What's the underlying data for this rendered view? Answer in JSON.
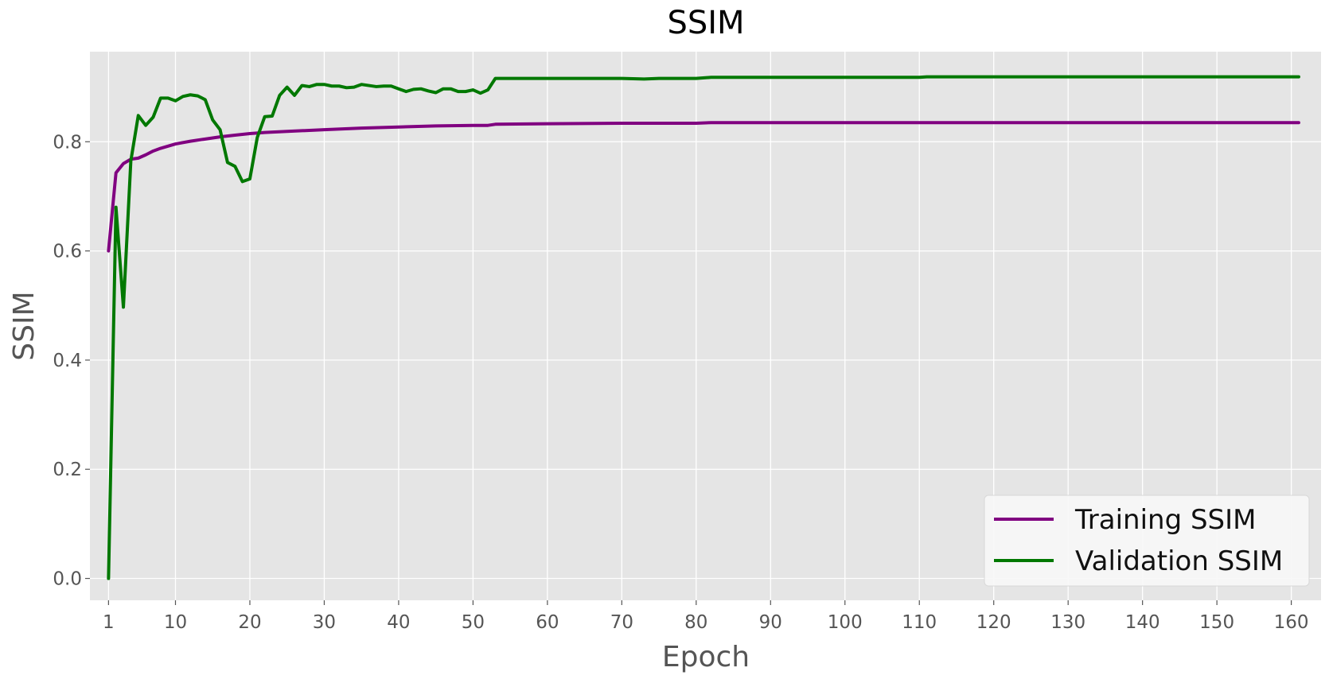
{
  "chart_data": {
    "type": "line",
    "title": "SSIM",
    "xlabel": "Epoch",
    "ylabel": "SSIM",
    "xlim": [
      -1.5,
      164
    ],
    "ylim": [
      -0.04,
      0.965
    ],
    "xticks": [
      1,
      10,
      20,
      30,
      40,
      50,
      60,
      70,
      80,
      90,
      100,
      110,
      120,
      130,
      140,
      150,
      160
    ],
    "yticks": [
      0.0,
      0.2,
      0.4,
      0.6,
      0.8
    ],
    "ytick_labels": [
      "0.0",
      "0.2",
      "0.4",
      "0.6",
      "0.8"
    ],
    "grid": true,
    "legend_position": "lower-right",
    "series": [
      {
        "name": "Training SSIM",
        "color": "#800080",
        "points": [
          [
            1,
            0.6
          ],
          [
            2,
            0.743
          ],
          [
            3,
            0.76
          ],
          [
            4,
            0.768
          ],
          [
            5,
            0.77
          ],
          [
            6,
            0.776
          ],
          [
            7,
            0.783
          ],
          [
            8,
            0.788
          ],
          [
            9,
            0.792
          ],
          [
            10,
            0.796
          ],
          [
            12,
            0.801
          ],
          [
            14,
            0.805
          ],
          [
            16,
            0.809
          ],
          [
            18,
            0.812
          ],
          [
            20,
            0.815
          ],
          [
            22,
            0.817
          ],
          [
            25,
            0.819
          ],
          [
            30,
            0.822
          ],
          [
            35,
            0.825
          ],
          [
            40,
            0.827
          ],
          [
            45,
            0.829
          ],
          [
            50,
            0.83
          ],
          [
            52,
            0.83
          ],
          [
            53,
            0.832
          ],
          [
            60,
            0.833
          ],
          [
            70,
            0.834
          ],
          [
            80,
            0.834
          ],
          [
            82,
            0.835
          ],
          [
            90,
            0.835
          ],
          [
            100,
            0.835
          ],
          [
            110,
            0.835
          ],
          [
            120,
            0.835
          ],
          [
            130,
            0.835
          ],
          [
            140,
            0.835
          ],
          [
            150,
            0.835
          ],
          [
            161,
            0.835
          ]
        ]
      },
      {
        "name": "Validation SSIM",
        "color": "#007800",
        "points": [
          [
            1,
            0.0
          ],
          [
            2,
            0.68
          ],
          [
            3,
            0.497
          ],
          [
            4,
            0.765
          ],
          [
            5,
            0.848
          ],
          [
            6,
            0.83
          ],
          [
            7,
            0.845
          ],
          [
            8,
            0.88
          ],
          [
            9,
            0.88
          ],
          [
            10,
            0.875
          ],
          [
            11,
            0.883
          ],
          [
            12,
            0.886
          ],
          [
            13,
            0.884
          ],
          [
            14,
            0.877
          ],
          [
            15,
            0.84
          ],
          [
            16,
            0.822
          ],
          [
            17,
            0.762
          ],
          [
            18,
            0.755
          ],
          [
            19,
            0.727
          ],
          [
            20,
            0.732
          ],
          [
            21,
            0.808
          ],
          [
            22,
            0.846
          ],
          [
            23,
            0.847
          ],
          [
            24,
            0.885
          ],
          [
            25,
            0.9
          ],
          [
            26,
            0.885
          ],
          [
            27,
            0.903
          ],
          [
            28,
            0.901
          ],
          [
            29,
            0.905
          ],
          [
            30,
            0.905
          ],
          [
            31,
            0.902
          ],
          [
            32,
            0.902
          ],
          [
            33,
            0.899
          ],
          [
            34,
            0.9
          ],
          [
            35,
            0.905
          ],
          [
            36,
            0.903
          ],
          [
            37,
            0.901
          ],
          [
            38,
            0.902
          ],
          [
            39,
            0.902
          ],
          [
            40,
            0.897
          ],
          [
            41,
            0.892
          ],
          [
            42,
            0.896
          ],
          [
            43,
            0.897
          ],
          [
            44,
            0.893
          ],
          [
            45,
            0.89
          ],
          [
            46,
            0.897
          ],
          [
            47,
            0.897
          ],
          [
            48,
            0.892
          ],
          [
            49,
            0.892
          ],
          [
            50,
            0.895
          ],
          [
            51,
            0.889
          ],
          [
            52,
            0.895
          ],
          [
            53,
            0.916
          ],
          [
            55,
            0.916
          ],
          [
            60,
            0.916
          ],
          [
            65,
            0.916
          ],
          [
            70,
            0.916
          ],
          [
            73,
            0.915
          ],
          [
            75,
            0.916
          ],
          [
            80,
            0.916
          ],
          [
            82,
            0.918
          ],
          [
            90,
            0.918
          ],
          [
            100,
            0.918
          ],
          [
            110,
            0.918
          ],
          [
            111,
            0.919
          ],
          [
            120,
            0.919
          ],
          [
            130,
            0.919
          ],
          [
            140,
            0.919
          ],
          [
            150,
            0.919
          ],
          [
            161,
            0.919
          ]
        ]
      }
    ]
  }
}
